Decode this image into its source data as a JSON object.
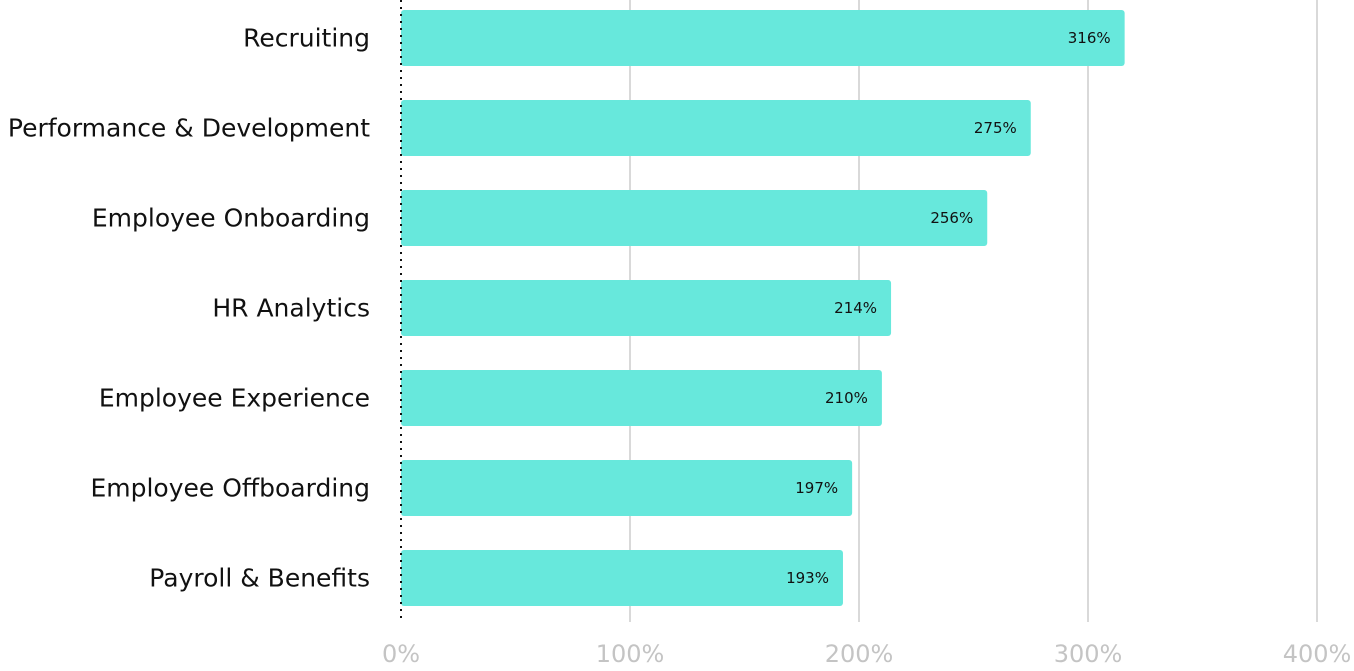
{
  "chart_data": {
    "type": "bar",
    "orientation": "horizontal",
    "categories": [
      "Recruiting",
      "Performance & Development",
      "Employee Onboarding",
      "HR Analytics",
      "Employee Experience",
      "Employee Offboarding",
      "Payroll & Benefits"
    ],
    "values": [
      316,
      275,
      256,
      214,
      210,
      197,
      193
    ],
    "value_labels": [
      "316%",
      "275%",
      "256%",
      "214%",
      "210%",
      "197%",
      "193%"
    ],
    "xlim": [
      0,
      400
    ],
    "x_ticks": [
      0,
      100,
      200,
      300,
      400
    ],
    "x_tick_labels": [
      "0%",
      "100%",
      "200%",
      "300%",
      "400%"
    ],
    "grid": "vertical",
    "bar_color": "#67e8dc",
    "title": "",
    "xlabel": "",
    "ylabel": ""
  }
}
